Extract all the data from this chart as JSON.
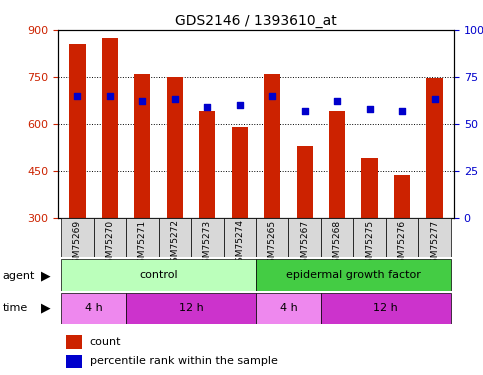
{
  "title": "GDS2146 / 1393610_at",
  "samples": [
    "GSM75269",
    "GSM75270",
    "GSM75271",
    "GSM75272",
    "GSM75273",
    "GSM75274",
    "GSM75265",
    "GSM75267",
    "GSM75268",
    "GSM75275",
    "GSM75276",
    "GSM75277"
  ],
  "counts": [
    855,
    875,
    760,
    750,
    640,
    590,
    760,
    530,
    640,
    490,
    435,
    745
  ],
  "percentiles": [
    65,
    65,
    62,
    63,
    59,
    60,
    65,
    57,
    62,
    58,
    57,
    63
  ],
  "y_min": 300,
  "y_max": 900,
  "y_ticks": [
    300,
    450,
    600,
    750,
    900
  ],
  "right_y_ticks": [
    0,
    25,
    50,
    75,
    100
  ],
  "right_y_labels": [
    "0",
    "25",
    "50",
    "75",
    "100%"
  ],
  "bar_color": "#cc2200",
  "dot_color": "#0000cc",
  "grid_color": "#000000",
  "agent_control_label": "control",
  "agent_egf_label": "epidermal growth factor",
  "agent_control_color": "#bbffbb",
  "agent_egf_color": "#44cc44",
  "time_4h_color": "#ee88ee",
  "time_12h_color": "#cc33cc",
  "tick_label_color_left": "#cc2200",
  "tick_label_color_right": "#0000cc",
  "legend_count_color": "#cc2200",
  "legend_pct_color": "#0000cc",
  "time_data": [
    [
      -0.5,
      2.0,
      "4 h",
      "#ee88ee"
    ],
    [
      1.5,
      4.0,
      "12 h",
      "#cc33cc"
    ],
    [
      5.5,
      2.0,
      "4 h",
      "#ee88ee"
    ],
    [
      7.5,
      4.0,
      "12 h",
      "#cc33cc"
    ]
  ]
}
